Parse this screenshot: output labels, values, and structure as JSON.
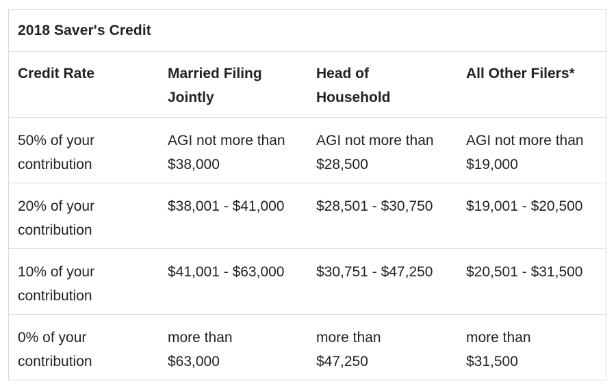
{
  "table": {
    "title": "2018 Saver's Credit",
    "headers": [
      [
        "Credit Rate"
      ],
      [
        "Married Filing",
        "Jointly"
      ],
      [
        "Head of",
        "Household"
      ],
      [
        "All Other Filers*"
      ]
    ],
    "rows": [
      {
        "rate": [
          "50% of your",
          "contribution"
        ],
        "married": [
          "AGI not more than",
          "$38,000"
        ],
        "head": [
          "AGI not more than",
          "$28,500"
        ],
        "other": [
          "AGI not more than",
          "$19,000"
        ]
      },
      {
        "rate": [
          "20% of your",
          "contribution"
        ],
        "married": [
          "$38,001 - $41,000"
        ],
        "head": [
          "$28,501 - $30,750"
        ],
        "other": [
          "$19,001 - $20,500"
        ]
      },
      {
        "rate": [
          "10% of your",
          "contribution"
        ],
        "married": [
          "$41,001 - $63,000"
        ],
        "head": [
          "$30,751 - $47,250"
        ],
        "other": [
          "$20,501 - $31,500"
        ]
      },
      {
        "rate": [
          "0% of your",
          "contribution"
        ],
        "married": [
          "more than",
          "$63,000"
        ],
        "head": [
          "more than",
          "$47,250"
        ],
        "other": [
          "more than",
          "$31,500"
        ]
      }
    ]
  }
}
